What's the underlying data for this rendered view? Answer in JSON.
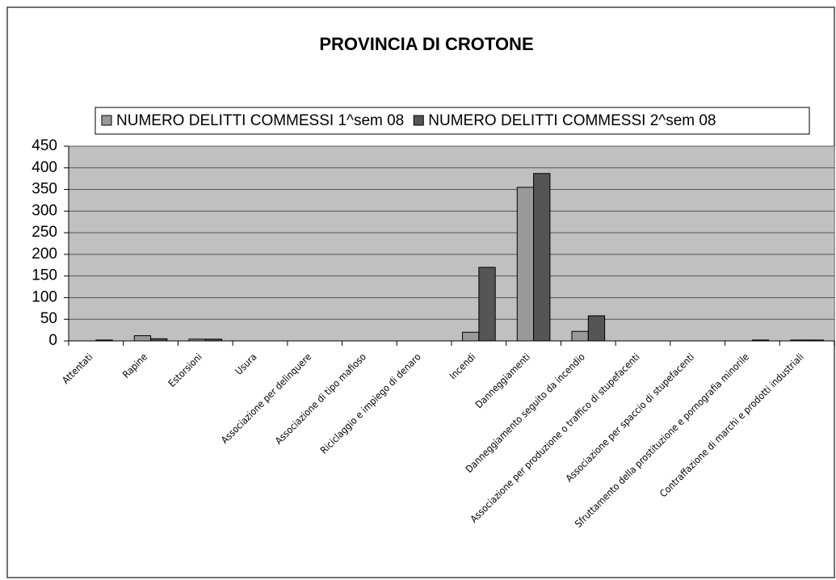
{
  "chart_data": {
    "type": "bar",
    "title": "PROVINCIA DI CROTONE",
    "categories": [
      "Attentati",
      "Rapine",
      "Estorsioni",
      "Usura",
      "Associazione per delinquere",
      "Associazione di tipo mafioso",
      "Riciclaggio e impiego di denaro",
      "Incendi",
      "Danneggiamenti",
      "Danneggiamento seguito da incendio",
      "Associazione per produzione o traffico di stupefacenti",
      "Associazione per spaccio di stupefacenti",
      "Sfruttamento della prostituzione e pornografia minorile",
      "Contraffazione di marchi e prodotti industriali"
    ],
    "series": [
      {
        "name": "NUMERO DELITTI COMMESSI 1^sem 08",
        "color": "#999999",
        "values": [
          0,
          12,
          4,
          0,
          0,
          0,
          0,
          20,
          355,
          22,
          0,
          0,
          0,
          2
        ]
      },
      {
        "name": "NUMERO DELITTI COMMESSI 2^sem 08",
        "color": "#555555",
        "values": [
          2,
          5,
          4,
          0,
          0,
          0,
          0,
          170,
          387,
          58,
          0,
          0,
          2,
          2
        ]
      }
    ],
    "ylim": [
      0,
      450
    ],
    "yticks": [
      0,
      50,
      100,
      150,
      200,
      250,
      300,
      350,
      400,
      450
    ],
    "grid": true,
    "legend": "top"
  }
}
